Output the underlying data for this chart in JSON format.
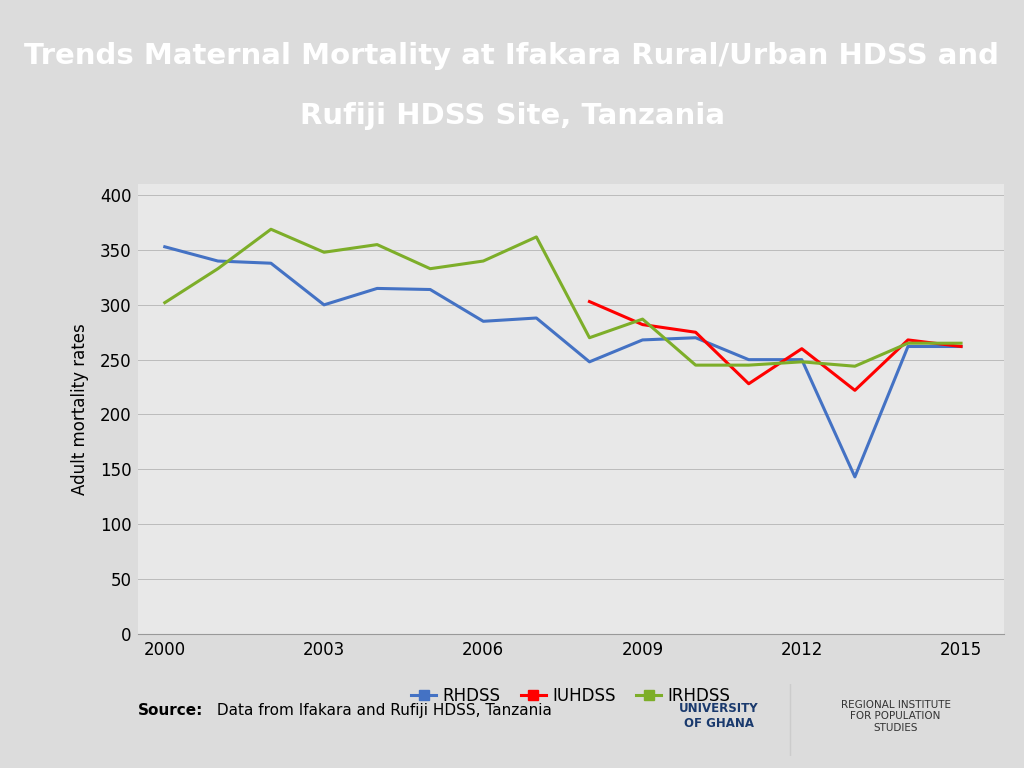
{
  "title_line1": "Trends Maternal Mortality at Ifakara Rural/Urban HDSS and",
  "title_line2": "Rufiji HDSS Site, Tanzania",
  "title_bg_color": "#0d1b6e",
  "title_text_color": "#ffffff",
  "chart_bg_color": "#e8e8e8",
  "outer_bg_color": "#dcdcdc",
  "ylabel": "Adult mortality rates",
  "source_text_bold": "Source:",
  "source_text_normal": " Data from Ifakara and Rufiji HDSS, Tanzania",
  "ylim": [
    0,
    410
  ],
  "yticks": [
    0,
    50,
    100,
    150,
    200,
    250,
    300,
    350,
    400
  ],
  "legend_labels": [
    "RHDSS",
    "IUHDSS",
    "IRHDSS"
  ],
  "line_colors": [
    "#4472c4",
    "#ff0000",
    "#7dae29"
  ],
  "RHDSS_x": [
    2000,
    2001,
    2002,
    2003,
    2004,
    2005,
    2006,
    2007,
    2008,
    2009,
    2010,
    2011,
    2012,
    2013,
    2014,
    2015
  ],
  "RHDSS_y": [
    353,
    340,
    338,
    300,
    315,
    314,
    285,
    288,
    248,
    268,
    270,
    250,
    250,
    143,
    262,
    262
  ],
  "IUHDSS_x": [
    2008,
    2009,
    2010,
    2011,
    2012,
    2013,
    2014,
    2015
  ],
  "IUHDSS_y": [
    303,
    282,
    275,
    228,
    260,
    222,
    268,
    262
  ],
  "IRHDSS_x": [
    2000,
    2001,
    2002,
    2003,
    2004,
    2005,
    2006,
    2007,
    2008,
    2009,
    2010,
    2011,
    2012,
    2013,
    2014,
    2015
  ],
  "IRHDSS_y": [
    302,
    333,
    369,
    348,
    355,
    333,
    340,
    362,
    270,
    287,
    245,
    245,
    248,
    244,
    265,
    265
  ],
  "xticks": [
    2000,
    2003,
    2006,
    2009,
    2012,
    2015
  ],
  "xlim": [
    1999.5,
    2015.8
  ],
  "separator_color": "#b5924c"
}
